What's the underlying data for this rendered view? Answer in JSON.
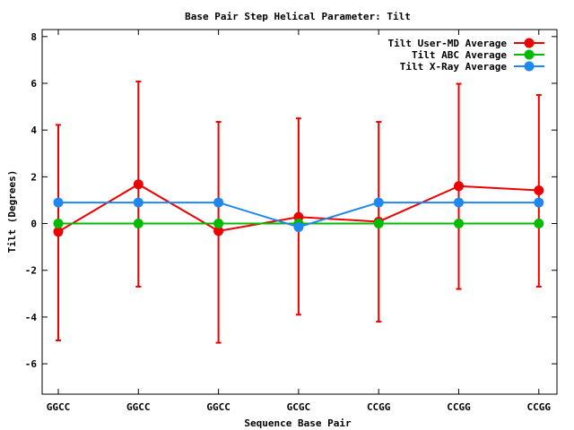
{
  "chart_data": {
    "type": "line",
    "title": "Base Pair Step Helical Parameter: Tilt",
    "xlabel": "Sequence Base Pair",
    "ylabel": "Tilt (Degrees)",
    "categories": [
      "GGCC",
      "GGCC",
      "GGCC",
      "GCGC",
      "CCGG",
      "CCGG",
      "CCGG"
    ],
    "ylim": [
      -7.3,
      8.3
    ],
    "yticks": [
      -6,
      -4,
      -2,
      0,
      2,
      4,
      6,
      8
    ],
    "ytick_labels": [
      "-6",
      "-4",
      "-2",
      "0",
      "2",
      "4",
      "6",
      "8"
    ],
    "grid": false,
    "legend_position": "top-right",
    "series": [
      {
        "name": "Tilt User-MD Average",
        "color": "#ee0000",
        "values": [
          -0.35,
          1.68,
          -0.32,
          0.28,
          0.08,
          1.6,
          1.42
        ],
        "error_low": [
          -5.0,
          -2.7,
          -5.1,
          -3.9,
          -4.2,
          -2.8,
          -2.7
        ],
        "error_high": [
          4.22,
          6.08,
          4.35,
          4.5,
          4.35,
          5.98,
          5.5
        ]
      },
      {
        "name": "Tilt ABC Average",
        "color": "#00bb00",
        "values": [
          0,
          0,
          0,
          0,
          0,
          0,
          0
        ]
      },
      {
        "name": "Tilt X-Ray Average",
        "color": "#1e88ee",
        "values": [
          0.9,
          0.9,
          0.9,
          -0.15,
          0.9,
          0.9,
          0.9
        ]
      }
    ]
  }
}
